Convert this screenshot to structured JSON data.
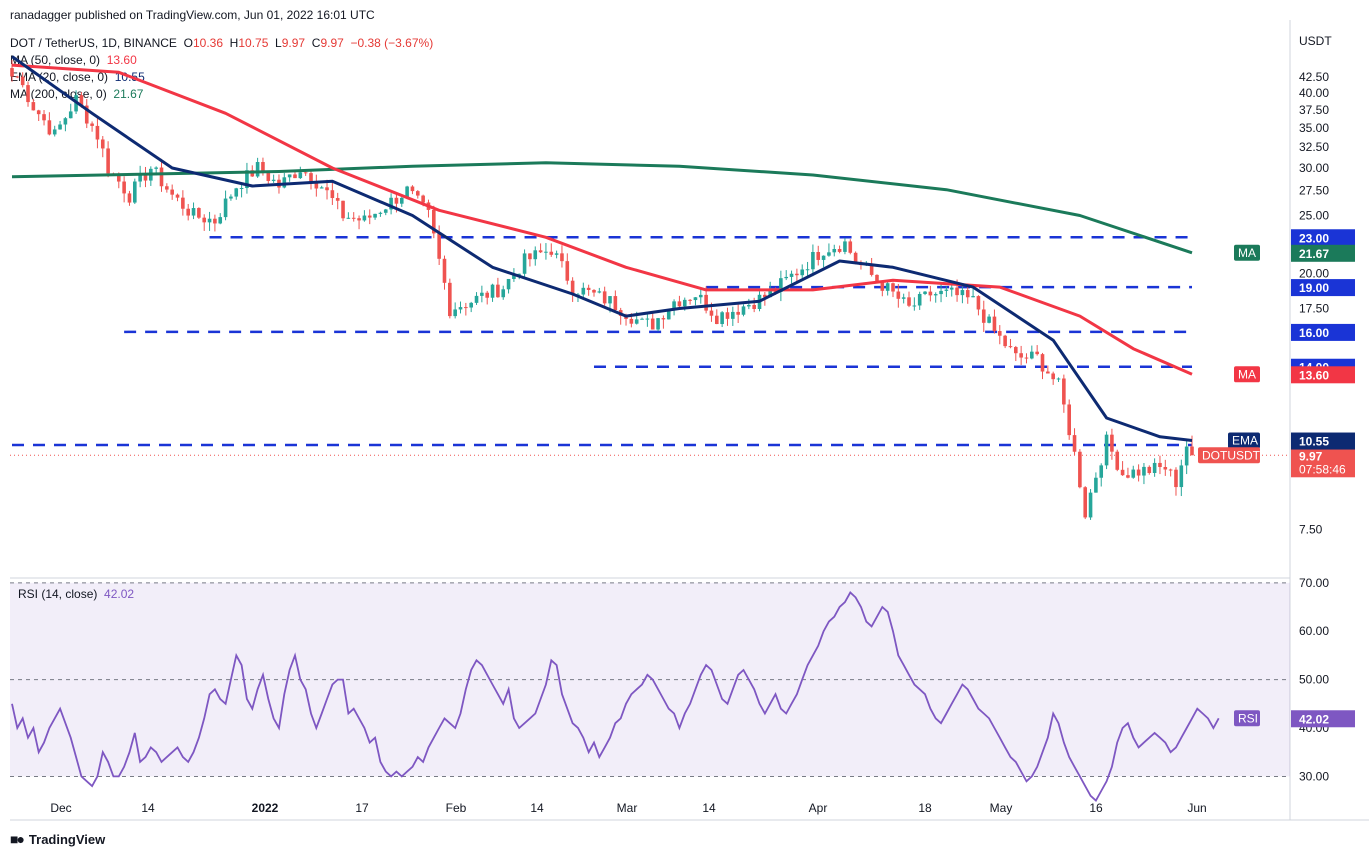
{
  "publisher_line": "ranadagger published on TradingView.com, Jun 01, 2022 16:01 UTC",
  "symbol_header": {
    "pair": "DOT / TetherUS, 1D, BINANCE",
    "o_label": "O",
    "o_value": "10.36",
    "h_label": "H",
    "h_value": "10.75",
    "l_label": "L",
    "l_value": "9.97",
    "c_label": "C",
    "c_value": "9.97",
    "change": "−0.38 (−3.67%)"
  },
  "indicators": [
    {
      "label": "MA (50, close, 0)",
      "value": "13.60",
      "color": "#f23645"
    },
    {
      "label": "EMA (20, close, 0)",
      "value": "10.55",
      "color": "#0d2a72"
    },
    {
      "label": "MA (200, close, 0)",
      "value": "21.67",
      "color": "#1b7a5a"
    }
  ],
  "rsi_header": {
    "label": "RSI (14, close)",
    "value": "42.02",
    "color": "#7e57c2"
  },
  "currency": "USDT",
  "logo_text": "TradingView",
  "colors": {
    "up": "#26a69a",
    "down": "#ef5350",
    "ma50": "#f23645",
    "ema20": "#0d2a72",
    "ma200": "#1b7a5a",
    "rsi": "#7e57c2",
    "hline": "#1a34d6"
  },
  "chart_data": [
    {
      "type": "candlestick",
      "title": "DOT / TetherUS, 1D, BINANCE",
      "y_scale": "log",
      "y_range": [
        6.3,
        49
      ],
      "y_ticks": [
        "42.50",
        "40.00",
        "37.50",
        "35.00",
        "32.50",
        "30.00",
        "27.50",
        "25.00",
        "23.00",
        "20.00",
        "17.50",
        "16.00",
        "14.00",
        "10.37",
        "9.97",
        "7.50"
      ],
      "x_ticks": [
        "Dec",
        "14",
        "2022",
        "17",
        "Feb",
        "14",
        "Mar",
        "14",
        "Apr",
        "18",
        "May",
        "16",
        "Jun"
      ],
      "anchors": [
        {
          "price": 42.6,
          "index": 1
        },
        {
          "price": 38,
          "index": 4
        },
        {
          "price": 34,
          "index": 8
        },
        {
          "price": 39,
          "index": 12
        },
        {
          "price": 34,
          "index": 16
        },
        {
          "price": 30,
          "index": 18
        },
        {
          "price": 27,
          "index": 22
        },
        {
          "price": 30,
          "index": 26
        },
        {
          "price": 27,
          "index": 30
        },
        {
          "price": 25,
          "index": 34
        },
        {
          "price": 24.5,
          "index": 38
        },
        {
          "price": 28,
          "index": 42
        },
        {
          "price": 30,
          "index": 46
        },
        {
          "price": 28,
          "index": 50
        },
        {
          "price": 30,
          "index": 54
        },
        {
          "price": 28,
          "index": 58
        },
        {
          "price": 25,
          "index": 62
        },
        {
          "price": 24.5,
          "index": 66
        },
        {
          "price": 26,
          "index": 70
        },
        {
          "price": 27.5,
          "index": 74
        },
        {
          "price": 25,
          "index": 78
        },
        {
          "price": 21,
          "index": 80
        },
        {
          "price": 17.5,
          "index": 82
        },
        {
          "price": 18,
          "index": 86
        },
        {
          "price": 19,
          "index": 92
        },
        {
          "price": 21,
          "index": 96
        },
        {
          "price": 22,
          "index": 101
        },
        {
          "price": 19,
          "index": 105
        },
        {
          "price": 18,
          "index": 112
        },
        {
          "price": 16.5,
          "index": 118
        },
        {
          "price": 16.5,
          "index": 120
        },
        {
          "price": 18,
          "index": 124
        },
        {
          "price": 18.5,
          "index": 128
        },
        {
          "price": 17,
          "index": 132
        },
        {
          "price": 17.5,
          "index": 136
        },
        {
          "price": 18.5,
          "index": 142
        },
        {
          "price": 20.5,
          "index": 148
        },
        {
          "price": 22,
          "index": 152
        },
        {
          "price": 22.5,
          "index": 156
        },
        {
          "price": 21,
          "index": 158
        },
        {
          "price": 19.5,
          "index": 162
        },
        {
          "price": 17.5,
          "index": 168
        },
        {
          "price": 18.5,
          "index": 172
        },
        {
          "price": 18.5,
          "index": 176
        },
        {
          "price": 18,
          "index": 180
        },
        {
          "price": 16,
          "index": 184
        },
        {
          "price": 14.5,
          "index": 188
        },
        {
          "price": 14.5,
          "index": 192
        },
        {
          "price": 13,
          "index": 196
        },
        {
          "price": 10,
          "index": 199
        },
        {
          "price": 8,
          "index": 201
        },
        {
          "price": 10.5,
          "index": 205
        },
        {
          "price": 9.3,
          "index": 208
        },
        {
          "price": 9.4,
          "index": 212
        },
        {
          "price": 9.5,
          "index": 216
        },
        {
          "price": 9.0,
          "index": 218
        },
        {
          "price": 10.36,
          "index": 220
        },
        {
          "price": 9.97,
          "index": 221
        }
      ],
      "last_ohlc": {
        "open": 10.36,
        "high": 10.75,
        "low": 9.97,
        "close": 9.97
      },
      "moving_averages": {
        "ma200": [
          [
            0,
            29.0
          ],
          [
            50,
            29.6
          ],
          [
            75,
            30.2
          ],
          [
            100,
            30.6
          ],
          [
            125,
            30.2
          ],
          [
            150,
            29.2
          ],
          [
            175,
            27.6
          ],
          [
            200,
            25.0
          ],
          [
            221,
            21.67
          ]
        ],
        "ma50": [
          [
            0,
            44.5
          ],
          [
            20,
            43.3
          ],
          [
            40,
            37
          ],
          [
            60,
            30
          ],
          [
            80,
            25.5
          ],
          [
            100,
            23
          ],
          [
            115,
            20.5
          ],
          [
            130,
            18.8
          ],
          [
            150,
            18.8
          ],
          [
            165,
            19.5
          ],
          [
            185,
            19.0
          ],
          [
            200,
            17
          ],
          [
            210,
            15
          ],
          [
            221,
            13.6
          ]
        ],
        "ema20": [
          [
            0,
            46
          ],
          [
            15,
            37
          ],
          [
            30,
            30
          ],
          [
            45,
            28
          ],
          [
            60,
            28.5
          ],
          [
            75,
            25
          ],
          [
            90,
            20.5
          ],
          [
            105,
            18.5
          ],
          [
            115,
            17
          ],
          [
            125,
            17.5
          ],
          [
            140,
            18
          ],
          [
            155,
            21
          ],
          [
            165,
            20.5
          ],
          [
            180,
            19
          ],
          [
            195,
            15.5
          ],
          [
            205,
            11.5
          ],
          [
            215,
            10.7
          ],
          [
            221,
            10.55
          ]
        ]
      },
      "horizontal_levels": [
        {
          "price": 23.0,
          "from_index": 37,
          "to_index": 221
        },
        {
          "price": 19.0,
          "from_index": 130,
          "to_index": 221
        },
        {
          "price": 16.0,
          "from_index": 21,
          "to_index": 221
        },
        {
          "price": 14.0,
          "from_index": 109,
          "to_index": 221
        },
        {
          "price": 10.37,
          "from_index": 0,
          "to_index": 221
        }
      ],
      "price_labels": [
        {
          "text": "23.00",
          "price": 23.0,
          "color": "#1a34d6"
        },
        {
          "text": "19.00",
          "price": 19.0,
          "color": "#1a34d6"
        },
        {
          "text": "16.00",
          "price": 16.0,
          "color": "#1a34d6"
        },
        {
          "text": "14.00",
          "price": 14.0,
          "color": "#1a34d6"
        },
        {
          "text": "10.37",
          "price": 10.37,
          "color": "#1a34d6"
        },
        {
          "text": "9.97",
          "price": 9.97,
          "color": "#ef5350",
          "sub": "07:58:46"
        }
      ],
      "side_tags": [
        {
          "text": "MA",
          "value": "21.67",
          "price": 21.67,
          "color": "#1b7a5a"
        },
        {
          "text": "MA",
          "value": "13.60",
          "price": 13.6,
          "color": "#f23645"
        },
        {
          "text": "EMA",
          "value": "10.55",
          "price": 10.55,
          "color": "#0d2a72"
        },
        {
          "text": "DOTUSDT",
          "value": "9.97",
          "price": 9.97,
          "color": "#ef5350"
        }
      ]
    },
    {
      "type": "line",
      "title": "RSI (14, close)",
      "y_range": [
        21,
        71
      ],
      "y_ticks": [
        "70.00",
        "60.00",
        "50.00",
        "40.00",
        "30.00"
      ],
      "band": [
        30,
        70
      ],
      "midline": 50,
      "series": [
        {
          "name": "RSI",
          "values": [
            45,
            40,
            42,
            38,
            40,
            35,
            37,
            40,
            42,
            44,
            41,
            38,
            34,
            30,
            29,
            28,
            30,
            35,
            33,
            30,
            30,
            32,
            35,
            39,
            33,
            34,
            36,
            35,
            33,
            34,
            35,
            36,
            34,
            33,
            35,
            38,
            42,
            47,
            48,
            46,
            45,
            50,
            55,
            53,
            46,
            44,
            48,
            51,
            46,
            42,
            40,
            47,
            52,
            55,
            50,
            48,
            43,
            40,
            43,
            46,
            49,
            50,
            50,
            43,
            44,
            42,
            40,
            37,
            38,
            33,
            31,
            30,
            31,
            30,
            31,
            32,
            34,
            33,
            36,
            38,
            40,
            42,
            41,
            40,
            43,
            48,
            52,
            54,
            53,
            51,
            49,
            47,
            45,
            48,
            42,
            40,
            41,
            42,
            43,
            46,
            49,
            54,
            53,
            47,
            44,
            41,
            40,
            38,
            35,
            37,
            34,
            36,
            38,
            41,
            42,
            45,
            47,
            48,
            49,
            51,
            50,
            48,
            46,
            44,
            43,
            40,
            43,
            45,
            48,
            51,
            53,
            52,
            49,
            46,
            45,
            48,
            51,
            52,
            50,
            48,
            45,
            43,
            45,
            47,
            44,
            43,
            45,
            47,
            50,
            53,
            55,
            57,
            60,
            62,
            63,
            65,
            66,
            68,
            67,
            65,
            62,
            61,
            63,
            65,
            64,
            60,
            55,
            53,
            51,
            49,
            48,
            47,
            44,
            42,
            41,
            43,
            45,
            47,
            49,
            48,
            46,
            44,
            43,
            42,
            40,
            38,
            36,
            34,
            33,
            31,
            29,
            30,
            32,
            35,
            38,
            43,
            41,
            37,
            34,
            32,
            30,
            28,
            26,
            25,
            27,
            29,
            32,
            37,
            40,
            41,
            38,
            36,
            37,
            38,
            39,
            38,
            37,
            35,
            36,
            38,
            40,
            42,
            44,
            43,
            42,
            40,
            42.02
          ]
        }
      ]
    }
  ]
}
